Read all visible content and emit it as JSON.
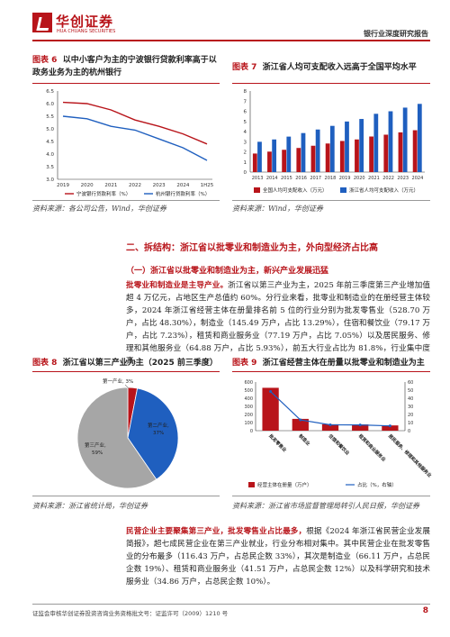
{
  "header": {
    "brand_cn": "华创证券",
    "brand_en": "HUA CHUANG SECURITIES",
    "report_type": "银行业深度研究报告"
  },
  "fig6": {
    "caption_num": "图表 6",
    "caption_text": "以中小客户为主的宁波银行贷款利率高于以政务业务为主的杭州银行",
    "source": "资料来源：各公司公告，Wind，华创证券"
  },
  "fig7": {
    "caption_num": "图表 7",
    "caption_text": "浙江省人均可支配收入远高于全国平均水平",
    "source": "资料来源：Wind，华创证券"
  },
  "section2": {
    "title": "二、拆结构：浙江省以批零业和制造业为主，外向型经济占比高",
    "sub1": "（一）浙江省以批零业和制造业为主，新兴产业发展迅猛",
    "para1_bold": "批零业和制造业是主导产业。",
    "para1_rest": "浙江省以第三产业为主，2025 年前三季度第三产业增加值超 4 万亿元，占地区生产总值约 60%。分行业来看，批零业和制造业的在册经营主体较多，2024 年浙江省经营主体在册量排名前 5 位的行业分别为批发零售业（528.70 万户，占比 48.30%），制造业（145.49 万户，占比 13.29%），住宿和餐饮业（79.17 万户，占比 7.23%），租赁和商业服务业（77.19 万户，占比 7.05%）以及居民服务、修理和其他服务业（64.88 万户，占比 5.93%），前五大行业占比为 81.8%，行业集中度高。"
  },
  "fig8": {
    "caption_num": "图表 8",
    "caption_text": "浙江省以第三产业为主（2025 前三季度）",
    "source": "资料来源：浙江省统计局，华创证券",
    "labels": [
      "第一产业, 3%",
      "第二产业, 37%",
      "第三产业, 59%"
    ]
  },
  "fig9": {
    "caption_num": "图表 9",
    "caption_text": "浙江省经营主体在册量以批零业和制造业为主",
    "source": "资料来源：浙江省市场监督管理局转引人民日报，华创证券"
  },
  "para2": {
    "bold": "民营企业主要聚集第三产业，批发零售业占比最多，",
    "rest": "根据《2024 年浙江省民营企业发展简报》，超七成民营企业在第三产业就业，行业分布相对集中。其中民营企业在批发零售业的分布最多（116.43 万户，占总民企数 33%），其次是制造业（66.11 万户，占总民企数 19%）、租赁和商业服务业（41.51 万户，占总民企数 12%）以及科学研究和技术服务业（34.86 万户，占总民企数 10%）。"
  },
  "footer": {
    "license": "证监会审核华创证券投资咨询业务资格批文号：证监许可（2009）1210 号",
    "page": "8"
  },
  "colors": {
    "accent": "#b8141a",
    "blue": "#1f5fbf",
    "gray": "#a6a6a6"
  },
  "chart_data": [
    {
      "type": "line",
      "x": [
        "2019",
        "2020",
        "2021",
        "2022",
        "2023",
        "2024",
        "1H25"
      ],
      "ylim": [
        3.0,
        6.5
      ],
      "yticks": [
        "3.0",
        "3.5",
        "4.0",
        "4.5",
        "5.0",
        "5.5",
        "6.0",
        "6.5"
      ],
      "series": [
        {
          "name": "宁波银行贷款利率（%）",
          "color": "#b8141a",
          "values": [
            6.05,
            6.0,
            5.75,
            5.35,
            5.1,
            4.8,
            4.4
          ]
        },
        {
          "name": "杭州银行贷款利率（%）",
          "color": "#1f5fbf",
          "values": [
            5.5,
            5.4,
            5.1,
            4.95,
            4.6,
            4.25,
            3.75
          ]
        }
      ]
    },
    {
      "type": "bar",
      "categories": [
        "2013",
        "2014",
        "2015",
        "2016",
        "2017",
        "2018",
        "2019",
        "2020",
        "2021",
        "2022",
        "2023",
        "2024"
      ],
      "ylim": [
        0,
        8
      ],
      "yticks": [
        "0",
        "1",
        "2",
        "3",
        "4",
        "5",
        "6",
        "7",
        "8"
      ],
      "series": [
        {
          "name": "全国人均可支配收入（万元）",
          "color": "#b8141a",
          "values": [
            1.83,
            2.02,
            2.2,
            2.38,
            2.6,
            2.82,
            3.07,
            3.22,
            3.51,
            3.69,
            3.92,
            4.13
          ]
        },
        {
          "name": "浙江省人均可支配收入（万元）",
          "color": "#1f5fbf",
          "values": [
            2.99,
            3.22,
            3.5,
            3.85,
            4.2,
            4.56,
            4.99,
            5.24,
            5.75,
            6.0,
            6.36,
            6.73
          ]
        }
      ]
    },
    {
      "type": "pie",
      "categories": [
        "第一产业",
        "第二产业",
        "第三产业"
      ],
      "values": [
        3,
        37,
        59
      ],
      "colors": [
        "#b8141a",
        "#1f5fbf",
        "#a6a6a6"
      ]
    },
    {
      "type": "bar",
      "categories": [
        "批发零售业",
        "制造业",
        "住宿和餐饮业",
        "租赁和商业服务业",
        "居民服务、修理和其他服务业"
      ],
      "ylim": [
        0,
        600
      ],
      "yticks": [
        "0",
        "100",
        "200",
        "300",
        "400",
        "500",
        "600"
      ],
      "y2lim": [
        0,
        60
      ],
      "y2ticks": [
        "0",
        "10",
        "20",
        "30",
        "40",
        "50",
        "60"
      ],
      "series": [
        {
          "name": "经营主体在册量（万户）",
          "color": "#b8141a",
          "values": [
            528.7,
            145.49,
            79.17,
            77.19,
            64.88
          ]
        },
        {
          "name": "占比（%，右轴）",
          "color": "#1f5fbf",
          "values": [
            48.3,
            13.29,
            7.23,
            7.05,
            5.93
          ]
        }
      ]
    }
  ]
}
